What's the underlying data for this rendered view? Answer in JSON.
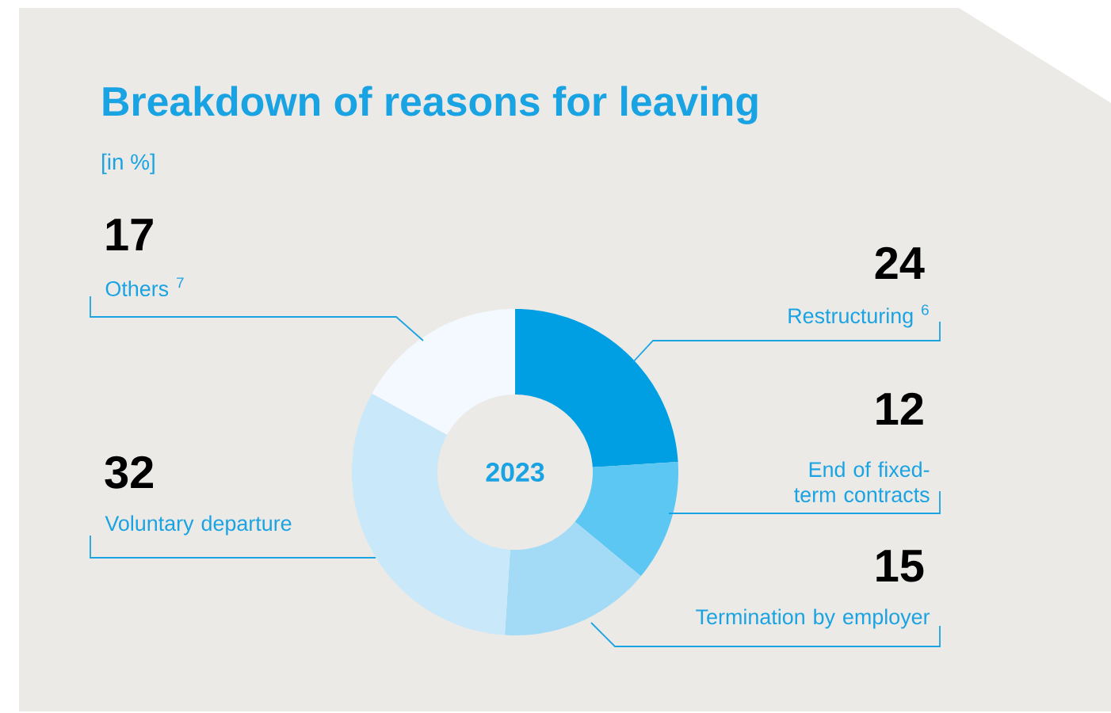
{
  "chart_data": {
    "type": "donut",
    "title": "Breakdown of reasons for leaving",
    "subtitle": "[in %]",
    "categories": [
      "Restructuring $^{6}$",
      "End of fixed-term contracts",
      "Termination by employer",
      "Voluntary departure",
      "Others $^{7}$"
    ],
    "values": [
      24,
      12,
      15,
      32,
      17
    ],
    "colors": [
      "#009fe3",
      "#5bc7f2",
      "#a3dbf7",
      "#c9e8f9",
      "#f3f9fe"
    ],
    "data_labels": true,
    "annotations": [
      "2023"
    ]
  }
}
